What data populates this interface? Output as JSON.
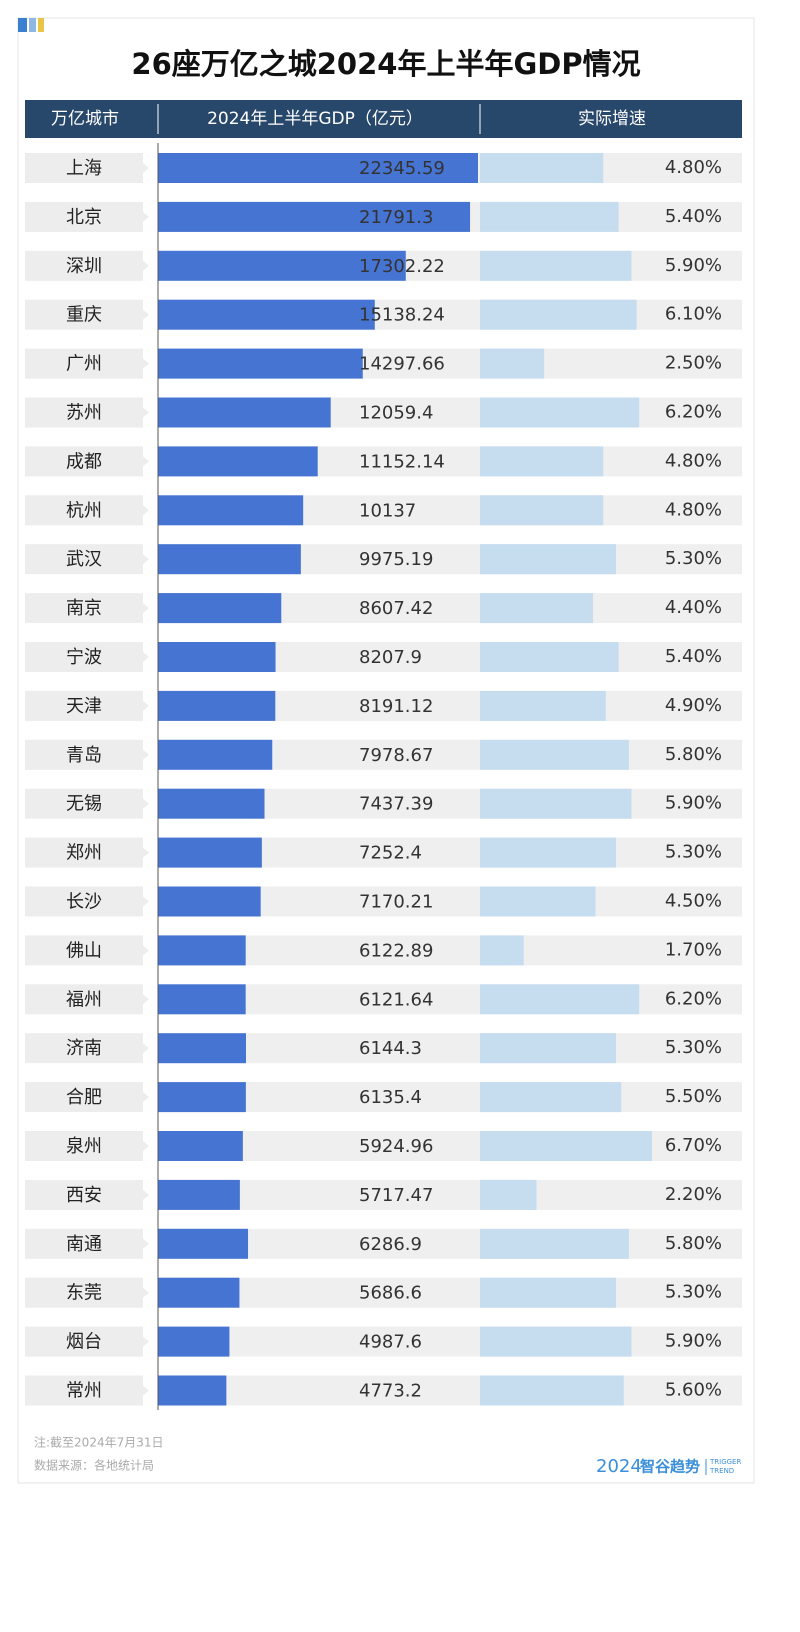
{
  "chart_data": {
    "type": "bar",
    "orientation": "horizontal",
    "title": "26座万亿之城2024年上半年GDP情况",
    "column_headers": [
      "万亿城市",
      "2024年上半年GDP（亿元）",
      "实际增速"
    ],
    "categories": [
      "上海",
      "北京",
      "深圳",
      "重庆",
      "广州",
      "苏州",
      "成都",
      "杭州",
      "武汉",
      "南京",
      "宁波",
      "天津",
      "青岛",
      "无锡",
      "郑州",
      "长沙",
      "佛山",
      "福州",
      "济南",
      "合肥",
      "泉州",
      "西安",
      "南通",
      "东莞",
      "烟台",
      "常州"
    ],
    "series": [
      {
        "color": "#4674d2",
        "values": [
          22345.59,
          21791.3,
          17302.22,
          15138.24,
          14297.66,
          12059.4,
          11152.14,
          10137,
          9975.19,
          8607.42,
          8207.9,
          8191.12,
          7978.67,
          7437.39,
          7252.4,
          7170.21,
          6122.89,
          6121.64,
          6144.3,
          6135.4,
          5924.96,
          5717.47,
          6286.9,
          5686.6,
          4987.6,
          4773.2
        ]
      },
      {
        "color": "#c6dcef",
        "values": [
          4.8,
          5.4,
          5.9,
          6.1,
          2.5,
          6.2,
          4.8,
          4.8,
          5.3,
          4.4,
          5.4,
          4.9,
          5.8,
          5.9,
          5.3,
          4.5,
          1.7,
          6.2,
          5.3,
          5.5,
          6.7,
          2.2,
          5.8,
          5.3,
          5.9,
          5.6
        ],
        "value_labels": [
          "4.80%",
          "5.40%",
          "5.90%",
          "6.10%",
          "2.50%",
          "6.20%",
          "4.80%",
          "4.80%",
          "5.30%",
          "4.40%",
          "5.40%",
          "4.90%",
          "5.80%",
          "5.90%",
          "5.30%",
          "4.50%",
          "1.70%",
          "6.20%",
          "5.30%",
          "5.50%",
          "6.70%",
          "2.20%",
          "5.80%",
          "5.30%",
          "5.90%",
          "5.60%"
        ]
      }
    ],
    "notes": [
      "注:截至2024年7月31日",
      "数据来源：各地统计局"
    ],
    "logo": {
      "year": "2024",
      "name": "智谷趋势",
      "tagline": [
        "TRIGGER",
        "TREND"
      ]
    }
  }
}
